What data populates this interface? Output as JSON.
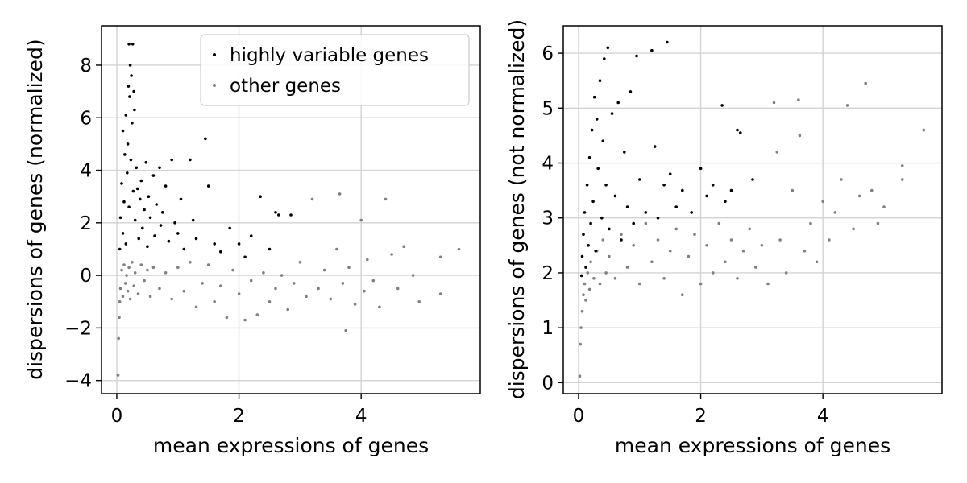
{
  "chart_data": [
    {
      "type": "scatter",
      "xlabel": "mean expressions of genes",
      "ylabel": "dispersions of genes (normalized)",
      "xlim": [
        -0.25,
        5.95
      ],
      "ylim": [
        -4.5,
        9.5
      ],
      "xticks": [
        0,
        2,
        4
      ],
      "yticks": [
        -4,
        -2,
        0,
        2,
        4,
        6,
        8
      ],
      "grid": true,
      "legend": {
        "placement": "top-right",
        "entries": [
          "highly variable genes",
          "other genes"
        ]
      },
      "series": [
        {
          "name": "highly variable genes",
          "color": "#000000",
          "points": [
            [
              0.05,
              1.0
            ],
            [
              0.06,
              2.2
            ],
            [
              0.08,
              3.5
            ],
            [
              0.1,
              1.6
            ],
            [
              0.1,
              5.5
            ],
            [
              0.12,
              2.8
            ],
            [
              0.13,
              4.6
            ],
            [
              0.15,
              6.1
            ],
            [
              0.15,
              1.2
            ],
            [
              0.17,
              3.9
            ],
            [
              0.18,
              5.0
            ],
            [
              0.19,
              7.2
            ],
            [
              0.2,
              2.6
            ],
            [
              0.2,
              8.8
            ],
            [
              0.21,
              6.8
            ],
            [
              0.22,
              8.0
            ],
            [
              0.23,
              4.4
            ],
            [
              0.24,
              7.6
            ],
            [
              0.25,
              5.8
            ],
            [
              0.26,
              8.8
            ],
            [
              0.27,
              3.2
            ],
            [
              0.28,
              7.0
            ],
            [
              0.29,
              6.3
            ],
            [
              0.3,
              2.1
            ],
            [
              0.32,
              4.1
            ],
            [
              0.34,
              3.3
            ],
            [
              0.36,
              1.4
            ],
            [
              0.38,
              2.9
            ],
            [
              0.4,
              3.6
            ],
            [
              0.42,
              1.8
            ],
            [
              0.45,
              2.5
            ],
            [
              0.48,
              4.3
            ],
            [
              0.5,
              1.1
            ],
            [
              0.52,
              3.0
            ],
            [
              0.55,
              2.2
            ],
            [
              0.6,
              3.8
            ],
            [
              0.62,
              1.5
            ],
            [
              0.65,
              2.7
            ],
            [
              0.7,
              4.1
            ],
            [
              0.72,
              1.9
            ],
            [
              0.75,
              2.4
            ],
            [
              0.8,
              3.4
            ],
            [
              0.85,
              1.3
            ],
            [
              0.9,
              4.4
            ],
            [
              0.95,
              2.0
            ],
            [
              1.0,
              1.6
            ],
            [
              1.05,
              2.9
            ],
            [
              1.1,
              1.0
            ],
            [
              1.2,
              4.4
            ],
            [
              1.25,
              2.1
            ],
            [
              1.3,
              1.4
            ],
            [
              1.45,
              5.2
            ],
            [
              1.5,
              3.4
            ],
            [
              1.6,
              1.2
            ],
            [
              1.7,
              0.9
            ],
            [
              1.85,
              1.8
            ],
            [
              2.0,
              1.2
            ],
            [
              2.1,
              0.7
            ],
            [
              2.2,
              1.5
            ],
            [
              2.35,
              3.0
            ],
            [
              2.5,
              1.0
            ],
            [
              2.6,
              2.4
            ],
            [
              2.65,
              2.3
            ],
            [
              2.85,
              2.3
            ]
          ]
        },
        {
          "name": "other genes",
          "color": "#808080",
          "points": [
            [
              0.02,
              -3.8
            ],
            [
              0.03,
              -2.4
            ],
            [
              0.04,
              -1.6
            ],
            [
              0.05,
              -1.0
            ],
            [
              0.06,
              -0.5
            ],
            [
              0.08,
              0.2
            ],
            [
              0.1,
              -0.8
            ],
            [
              0.12,
              0.4
            ],
            [
              0.14,
              -0.3
            ],
            [
              0.16,
              0.0
            ],
            [
              0.18,
              -0.6
            ],
            [
              0.2,
              0.3
            ],
            [
              0.22,
              -0.9
            ],
            [
              0.25,
              0.5
            ],
            [
              0.28,
              -0.4
            ],
            [
              0.3,
              0.1
            ],
            [
              0.35,
              -0.7
            ],
            [
              0.4,
              0.4
            ],
            [
              0.45,
              -0.2
            ],
            [
              0.5,
              0.2
            ],
            [
              0.55,
              -0.8
            ],
            [
              0.6,
              0.3
            ],
            [
              0.7,
              -0.5
            ],
            [
              0.8,
              0.1
            ],
            [
              0.9,
              -0.9
            ],
            [
              1.0,
              0.3
            ],
            [
              1.1,
              -0.6
            ],
            [
              1.2,
              0.5
            ],
            [
              1.3,
              -1.2
            ],
            [
              1.4,
              -0.3
            ],
            [
              1.5,
              0.4
            ],
            [
              1.6,
              -1.0
            ],
            [
              1.7,
              -0.4
            ],
            [
              1.8,
              -1.6
            ],
            [
              1.9,
              0.2
            ],
            [
              2.0,
              -0.7
            ],
            [
              2.1,
              -1.7
            ],
            [
              2.2,
              -0.2
            ],
            [
              2.3,
              -1.5
            ],
            [
              2.4,
              0.1
            ],
            [
              2.5,
              -1.0
            ],
            [
              2.6,
              -0.5
            ],
            [
              2.7,
              0.0
            ],
            [
              2.8,
              -1.3
            ],
            [
              2.9,
              -0.3
            ],
            [
              3.0,
              0.5
            ],
            [
              3.1,
              -0.8
            ],
            [
              3.2,
              2.9
            ],
            [
              3.3,
              -0.5
            ],
            [
              3.4,
              0.2
            ],
            [
              3.5,
              -0.9
            ],
            [
              3.6,
              1.0
            ],
            [
              3.65,
              3.1
            ],
            [
              3.7,
              -0.3
            ],
            [
              3.75,
              -2.1
            ],
            [
              3.8,
              0.3
            ],
            [
              3.9,
              -1.1
            ],
            [
              4.0,
              2.1
            ],
            [
              4.05,
              -0.6
            ],
            [
              4.1,
              0.6
            ],
            [
              4.2,
              -0.2
            ],
            [
              4.3,
              -1.2
            ],
            [
              4.4,
              2.9
            ],
            [
              4.5,
              0.8
            ],
            [
              4.6,
              -0.5
            ],
            [
              4.7,
              1.1
            ],
            [
              4.85,
              0.0
            ],
            [
              4.95,
              -1.0
            ],
            [
              5.3,
              0.7
            ],
            [
              5.3,
              -0.7
            ],
            [
              5.6,
              1.0
            ]
          ]
        }
      ]
    },
    {
      "type": "scatter",
      "xlabel": "mean expressions of genes",
      "ylabel": "dispersions of genes (not normalized)",
      "xlim": [
        -0.25,
        5.95
      ],
      "ylim": [
        -0.2,
        6.5
      ],
      "xticks": [
        0,
        2,
        4
      ],
      "yticks": [
        0,
        1,
        2,
        3,
        4,
        5,
        6
      ],
      "grid": true,
      "series": [
        {
          "name": "highly variable genes",
          "color": "#000000",
          "points": [
            [
              0.05,
              1.95
            ],
            [
              0.06,
              2.3
            ],
            [
              0.08,
              2.7
            ],
            [
              0.1,
              3.1
            ],
            [
              0.12,
              2.1
            ],
            [
              0.14,
              3.6
            ],
            [
              0.16,
              2.5
            ],
            [
              0.18,
              4.1
            ],
            [
              0.2,
              2.9
            ],
            [
              0.22,
              4.6
            ],
            [
              0.24,
              3.3
            ],
            [
              0.26,
              5.2
            ],
            [
              0.28,
              2.4
            ],
            [
              0.3,
              4.8
            ],
            [
              0.32,
              3.9
            ],
            [
              0.35,
              5.5
            ],
            [
              0.38,
              3.0
            ],
            [
              0.4,
              4.4
            ],
            [
              0.42,
              5.9
            ],
            [
              0.45,
              3.6
            ],
            [
              0.48,
              6.1
            ],
            [
              0.5,
              2.8
            ],
            [
              0.55,
              4.9
            ],
            [
              0.6,
              3.4
            ],
            [
              0.65,
              5.1
            ],
            [
              0.7,
              2.6
            ],
            [
              0.75,
              4.2
            ],
            [
              0.8,
              3.2
            ],
            [
              0.85,
              5.3
            ],
            [
              0.9,
              2.9
            ],
            [
              0.95,
              5.95
            ],
            [
              1.0,
              3.7
            ],
            [
              1.1,
              3.1
            ],
            [
              1.2,
              6.05
            ],
            [
              1.25,
              4.3
            ],
            [
              1.3,
              3.0
            ],
            [
              1.4,
              3.6
            ],
            [
              1.45,
              6.2
            ],
            [
              1.5,
              3.8
            ],
            [
              1.6,
              3.2
            ],
            [
              1.7,
              3.5
            ],
            [
              1.85,
              3.1
            ],
            [
              2.0,
              3.9
            ],
            [
              2.1,
              3.4
            ],
            [
              2.2,
              3.6
            ],
            [
              2.35,
              5.05
            ],
            [
              2.4,
              3.3
            ],
            [
              2.5,
              3.5
            ],
            [
              2.6,
              4.6
            ],
            [
              2.65,
              4.55
            ],
            [
              2.85,
              3.7
            ]
          ]
        },
        {
          "name": "other genes",
          "color": "#808080",
          "points": [
            [
              0.02,
              0.12
            ],
            [
              0.03,
              0.7
            ],
            [
              0.04,
              1.0
            ],
            [
              0.06,
              1.3
            ],
            [
              0.08,
              1.6
            ],
            [
              0.1,
              1.8
            ],
            [
              0.12,
              1.5
            ],
            [
              0.15,
              2.0
            ],
            [
              0.18,
              1.7
            ],
            [
              0.2,
              2.2
            ],
            [
              0.25,
              1.9
            ],
            [
              0.3,
              2.4
            ],
            [
              0.35,
              1.8
            ],
            [
              0.4,
              2.6
            ],
            [
              0.45,
              2.0
            ],
            [
              0.5,
              2.3
            ],
            [
              0.6,
              1.9
            ],
            [
              0.7,
              2.7
            ],
            [
              0.8,
              2.1
            ],
            [
              0.9,
              2.5
            ],
            [
              1.0,
              1.8
            ],
            [
              1.1,
              2.9
            ],
            [
              1.2,
              2.2
            ],
            [
              1.3,
              2.6
            ],
            [
              1.4,
              1.9
            ],
            [
              1.5,
              2.4
            ],
            [
              1.6,
              2.8
            ],
            [
              1.7,
              1.6
            ],
            [
              1.8,
              2.3
            ],
            [
              1.9,
              2.7
            ],
            [
              2.0,
              1.8
            ],
            [
              2.1,
              2.5
            ],
            [
              2.2,
              2.0
            ],
            [
              2.3,
              2.9
            ],
            [
              2.4,
              2.2
            ],
            [
              2.5,
              2.6
            ],
            [
              2.6,
              1.9
            ],
            [
              2.7,
              2.4
            ],
            [
              2.8,
              2.8
            ],
            [
              2.9,
              2.1
            ],
            [
              3.0,
              2.5
            ],
            [
              3.1,
              1.8
            ],
            [
              3.2,
              5.1
            ],
            [
              3.25,
              4.2
            ],
            [
              3.3,
              2.6
            ],
            [
              3.4,
              2.0
            ],
            [
              3.5,
              3.5
            ],
            [
              3.6,
              5.15
            ],
            [
              3.62,
              4.5
            ],
            [
              3.7,
              2.4
            ],
            [
              3.8,
              2.9
            ],
            [
              3.9,
              2.2
            ],
            [
              4.0,
              3.3
            ],
            [
              4.1,
              2.6
            ],
            [
              4.2,
              3.1
            ],
            [
              4.3,
              3.7
            ],
            [
              4.4,
              5.05
            ],
            [
              4.5,
              2.8
            ],
            [
              4.6,
              3.4
            ],
            [
              4.7,
              5.45
            ],
            [
              4.8,
              3.5
            ],
            [
              4.9,
              2.9
            ],
            [
              5.0,
              3.2
            ],
            [
              5.3,
              3.95
            ],
            [
              5.3,
              3.7
            ],
            [
              5.65,
              4.6
            ]
          ]
        }
      ]
    }
  ]
}
